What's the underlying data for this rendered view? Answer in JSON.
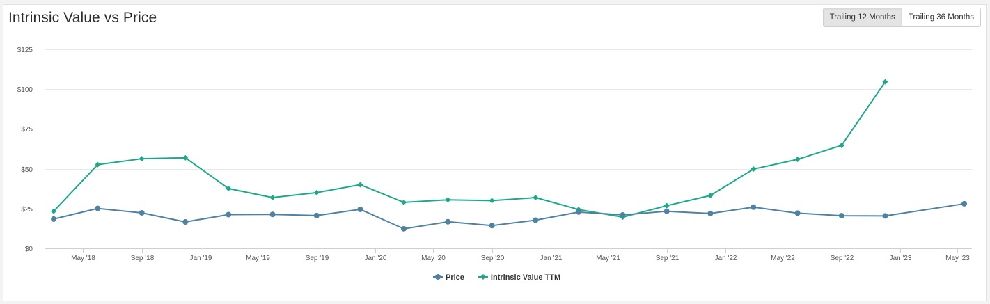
{
  "header": {
    "title": "Intrinsic Value vs Price",
    "toggle": {
      "ttm_label": "Trailing 12 Months",
      "t36_label": "Trailing 36 Months",
      "active": "ttm"
    }
  },
  "chart_data": {
    "type": "line",
    "title": "Intrinsic Value vs Price",
    "xlabel": "",
    "ylabel": "",
    "ylim": [
      0,
      125
    ],
    "yticks": [
      0,
      25,
      50,
      75,
      100,
      125
    ],
    "ytick_labels": [
      "$0",
      "$25",
      "$50",
      "$75",
      "$100",
      "$125"
    ],
    "xlim": [
      "2018-02-10",
      "2023-05-31"
    ],
    "xticks": [
      "2018-05-01",
      "2018-09-01",
      "2019-01-01",
      "2019-05-01",
      "2019-09-01",
      "2020-01-01",
      "2020-05-01",
      "2020-09-01",
      "2021-01-01",
      "2021-05-01",
      "2021-09-01",
      "2022-01-01",
      "2022-05-01",
      "2022-09-01",
      "2023-01-01",
      "2023-05-01"
    ],
    "xtick_labels": [
      "May '18",
      "Sep '18",
      "Jan '19",
      "May '19",
      "Sep '19",
      "Jan '20",
      "May '20",
      "Sep '20",
      "Jan '21",
      "May '21",
      "Sep '21",
      "Jan '22",
      "May '22",
      "Sep '22",
      "Jan '23",
      "May '23"
    ],
    "grid": true,
    "legend": "bottom-center",
    "series": [
      {
        "name": "Price",
        "color": "#4f81a3",
        "marker": "circle",
        "points": [
          [
            "2018-03-01",
            18.4
          ],
          [
            "2018-06-01",
            25.1
          ],
          [
            "2018-09-01",
            22.3
          ],
          [
            "2018-12-01",
            16.6
          ],
          [
            "2019-03-01",
            21.2
          ],
          [
            "2019-06-01",
            21.3
          ],
          [
            "2019-09-01",
            20.6
          ],
          [
            "2019-12-01",
            24.5
          ],
          [
            "2020-03-01",
            12.3
          ],
          [
            "2020-06-01",
            16.7
          ],
          [
            "2020-09-01",
            14.3
          ],
          [
            "2020-12-01",
            17.7
          ],
          [
            "2021-03-01",
            22.8
          ],
          [
            "2021-06-01",
            21.0
          ],
          [
            "2021-09-01",
            23.3
          ],
          [
            "2021-12-01",
            21.9
          ],
          [
            "2022-03-01",
            25.9
          ],
          [
            "2022-06-01",
            22.1
          ],
          [
            "2022-09-01",
            20.5
          ],
          [
            "2022-12-01",
            20.4
          ],
          [
            "2023-05-15",
            28.0
          ]
        ]
      },
      {
        "name": "Intrinsic Value TTM",
        "color": "#1aaa8a",
        "marker": "diamond",
        "points": [
          [
            "2018-03-01",
            23.3
          ],
          [
            "2018-06-01",
            52.6
          ],
          [
            "2018-09-01",
            56.3
          ],
          [
            "2018-12-01",
            56.9
          ],
          [
            "2019-03-01",
            37.6
          ],
          [
            "2019-06-01",
            31.9
          ],
          [
            "2019-09-01",
            35.0
          ],
          [
            "2019-12-01",
            40.0
          ],
          [
            "2020-03-01",
            28.9
          ],
          [
            "2020-06-01",
            30.5
          ],
          [
            "2020-09-01",
            30.0
          ],
          [
            "2020-12-01",
            31.9
          ],
          [
            "2021-03-01",
            24.4
          ],
          [
            "2021-06-01",
            19.6
          ],
          [
            "2021-09-01",
            26.8
          ],
          [
            "2021-12-01",
            33.2
          ],
          [
            "2022-03-01",
            49.8
          ],
          [
            "2022-06-01",
            55.9
          ],
          [
            "2022-09-01",
            64.7
          ],
          [
            "2022-12-01",
            104.6
          ]
        ]
      }
    ]
  }
}
